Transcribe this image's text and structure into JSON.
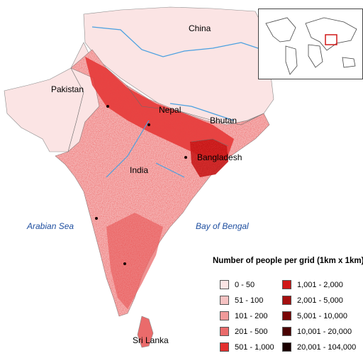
{
  "labels": {
    "china": "China",
    "pakistan": "Pakistan",
    "nepal": "Nepal",
    "bhutan": "Bhutan",
    "india": "India",
    "bangladesh": "Bangladesh",
    "sri_lanka": "Sri Lanka",
    "arabian_sea": "Arabian Sea",
    "bay_of_bengal": "Bay of Bengal"
  },
  "legend": {
    "title": "Number of people per grid (1km x 1km)",
    "classes": [
      {
        "label": "0 - 50",
        "color": "#fbe4e4"
      },
      {
        "label": "51 - 100",
        "color": "#f6c2c2"
      },
      {
        "label": "101 - 200",
        "color": "#f19a9a"
      },
      {
        "label": "201 - 500",
        "color": "#ea6b6b"
      },
      {
        "label": "501 - 1,000",
        "color": "#e3302f"
      },
      {
        "label": "1,001 - 2,000",
        "color": "#d01818"
      },
      {
        "label": "2,001 - 5,000",
        "color": "#a50f0f"
      },
      {
        "label": "5,001 - 10,000",
        "color": "#7a0505"
      },
      {
        "label": "10,001 - 20,000",
        "color": "#4a0202"
      },
      {
        "label": "20,001 - 104,000",
        "color": "#1a0000"
      }
    ]
  },
  "colors": {
    "land_low": "#fbe4e4",
    "land_mid": "#f19a9a",
    "land_high": "#e3302f",
    "river": "#4aa0e0",
    "inset_highlight": "#d01818"
  }
}
